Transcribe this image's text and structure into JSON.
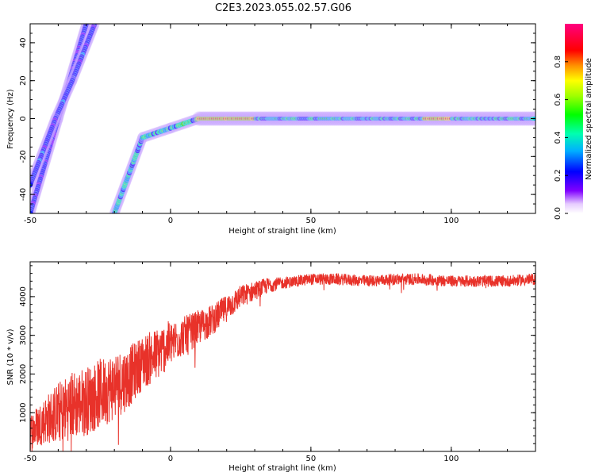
{
  "title": "C2E3.2023.055.02.57.G06",
  "colors": {
    "snr_line": "#e8322a",
    "frame": "#000000",
    "background": "#ffffff"
  },
  "chart_data": [
    {
      "type": "heatmap",
      "xlabel": "Height of straight line (km)",
      "ylabel": "Frequency (Hz)",
      "xlim": [
        -50,
        130
      ],
      "ylim": [
        -50,
        50
      ],
      "xticks": [
        "-50",
        "0",
        "50",
        "100"
      ],
      "yticks": [
        "-40",
        "-20",
        "0",
        "20",
        "40"
      ],
      "colorbar": {
        "label": "Normalized spectral amplitude",
        "range": [
          0,
          1
        ],
        "ticks": [
          "0.0",
          "0.2",
          "0.4",
          "0.6",
          "0.8"
        ],
        "colormap": "rainbow-violet-to-magenta"
      },
      "traces": [
        {
          "points": [
            [
              -30,
              50
            ],
            [
              -40,
              0
            ],
            [
              -50,
              -50
            ]
          ],
          "peak_amplitude": 0.45
        },
        {
          "points": [
            [
              -27,
              50
            ],
            [
              -35,
              20
            ],
            [
              -41,
              0
            ],
            [
              -50,
              -35
            ]
          ],
          "peak_amplitude": 0.5
        },
        {
          "points": [
            [
              -20,
              -50
            ],
            [
              -10,
              -10
            ],
            [
              0,
              -5
            ],
            [
              10,
              0
            ],
            [
              130,
              0
            ]
          ],
          "peak_amplitude": 1.0,
          "bright_segments_km": [
            [
              10,
              30
            ],
            [
              90,
              100
            ]
          ]
        }
      ]
    },
    {
      "type": "line",
      "xlabel": "Height of straight line (km)",
      "ylabel": "SNR (10 * v/v)",
      "xlim": [
        -50,
        130
      ],
      "ylim": [
        0,
        4900
      ],
      "xticks": [
        "-50",
        "0",
        "50",
        "100"
      ],
      "yticks": [
        "1000",
        "2000",
        "3000",
        "4000"
      ],
      "series_trend": {
        "x": [
          -50,
          -45,
          -40,
          -35,
          -30,
          -25,
          -20,
          -15,
          -10,
          -5,
          0,
          5,
          10,
          15,
          20,
          25,
          30,
          35,
          40,
          45,
          50,
          60,
          70,
          80,
          90,
          100,
          110,
          120,
          130
        ],
        "y": [
          500,
          800,
          1000,
          1200,
          1300,
          1500,
          1700,
          1900,
          2300,
          2500,
          2800,
          3000,
          3200,
          3400,
          3700,
          4000,
          4150,
          4300,
          4350,
          4400,
          4450,
          4450,
          4400,
          4450,
          4450,
          4400,
          4400,
          4400,
          4450
        ],
        "noise_amplitude": [
          500,
          600,
          800,
          900,
          900,
          900,
          900,
          800,
          700,
          700,
          600,
          500,
          450,
          400,
          350,
          300,
          250,
          200,
          150,
          150,
          150,
          150,
          150,
          150,
          150,
          150,
          150,
          150,
          150
        ]
      }
    }
  ]
}
